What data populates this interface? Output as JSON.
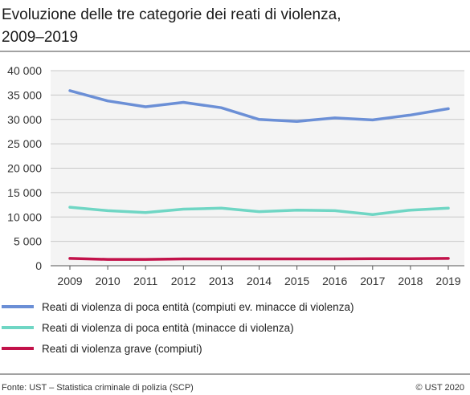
{
  "title_lines": [
    "Evoluzione delle tre categorie dei reati di violenza,",
    "2009–2019"
  ],
  "source": "Fonte: UST – Statistica criminale di polizia (SCP)",
  "copyright": "© UST 2020",
  "chart_data": {
    "type": "line",
    "title": "Evoluzione delle tre categorie dei reati di violenza, 2009–2019",
    "categories": [
      "2009",
      "2010",
      "2011",
      "2012",
      "2013",
      "2014",
      "2015",
      "2016",
      "2017",
      "2018",
      "2019"
    ],
    "y_ticks": [
      "0",
      "5 000",
      "10 000",
      "15 000",
      "20 000",
      "25 000",
      "30 000",
      "35 000",
      "40 000"
    ],
    "ylim": [
      0,
      40000
    ],
    "grid": "horizontal",
    "legend_position": "bottom",
    "series": [
      {
        "name": "Reati di violenza di poca entità (compiuti ev. minacce di violenza)",
        "color": "#6b8fd6",
        "values": [
          35900,
          33800,
          32600,
          33500,
          32400,
          30000,
          29600,
          30300,
          29900,
          30900,
          32200
        ]
      },
      {
        "name": "Reati di violenza di poca entità (minacce di violenza)",
        "color": "#6fd6c4",
        "values": [
          12000,
          11300,
          10900,
          11600,
          11800,
          11100,
          11400,
          11300,
          10500,
          11400,
          11800
        ]
      },
      {
        "name": "Reati di violenza grave  (compiuti)",
        "color": "#c2124a",
        "values": [
          1500,
          1300,
          1300,
          1400,
          1400,
          1400,
          1400,
          1400,
          1450,
          1450,
          1500
        ]
      }
    ]
  }
}
